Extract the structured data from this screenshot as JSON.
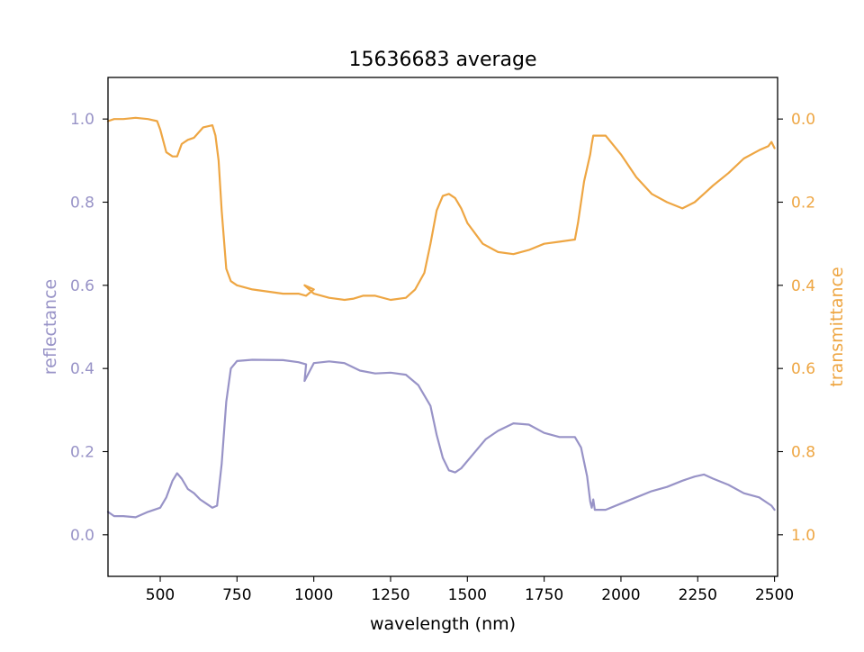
{
  "chart_data": {
    "type": "line",
    "title": "15636683 average",
    "xlabel": "wavelength (nm)",
    "ylabel_left": "reflectance",
    "ylabel_right": "transmittance",
    "xlim": [
      330,
      2510
    ],
    "ylim_left": [
      -0.1,
      1.1
    ],
    "ylim_right": [
      1.1,
      -0.1
    ],
    "x_ticks": [
      500,
      750,
      1000,
      1250,
      1500,
      1750,
      2000,
      2250,
      2500
    ],
    "x_tick_labels": [
      "500",
      "750",
      "1000",
      "1250",
      "1500",
      "1750",
      "2000",
      "2250",
      "2500"
    ],
    "y_ticks_left": [
      0.0,
      0.2,
      0.4,
      0.6,
      0.8,
      1.0
    ],
    "y_tick_labels_left": [
      "0.0",
      "0.2",
      "0.4",
      "0.6",
      "0.8",
      "1.0"
    ],
    "y_ticks_right": [
      0.0,
      0.2,
      0.4,
      0.6,
      0.8,
      1.0
    ],
    "y_tick_labels_right": [
      "0.0",
      "0.2",
      "0.4",
      "0.6",
      "0.8",
      "1.0"
    ],
    "grid": false,
    "colors": {
      "reflectance": "#9893c7",
      "transmittance": "#eea643",
      "axes": "#000000"
    },
    "series": [
      {
        "axis": "left",
        "x": [
          330,
          350,
          380,
          420,
          460,
          500,
          520,
          540,
          555,
          570,
          590,
          610,
          630,
          650,
          670,
          685,
          700,
          715,
          730,
          750,
          800,
          900,
          950,
          975,
          970,
          1000,
          1050,
          1100,
          1150,
          1200,
          1250,
          1300,
          1340,
          1380,
          1400,
          1420,
          1440,
          1460,
          1480,
          1520,
          1560,
          1600,
          1650,
          1700,
          1750,
          1800,
          1850,
          1870,
          1890,
          1900,
          1905,
          1910,
          1915,
          1920,
          1950,
          2000,
          2050,
          2100,
          2150,
          2200,
          2240,
          2270,
          2300,
          2350,
          2400,
          2450,
          2490,
          2500
        ],
        "y": [
          0.055,
          0.045,
          0.045,
          0.042,
          0.055,
          0.065,
          0.09,
          0.13,
          0.148,
          0.135,
          0.11,
          0.1,
          0.085,
          0.075,
          0.065,
          0.07,
          0.17,
          0.32,
          0.4,
          0.418,
          0.421,
          0.42,
          0.415,
          0.41,
          0.37,
          0.413,
          0.417,
          0.413,
          0.395,
          0.388,
          0.39,
          0.385,
          0.36,
          0.31,
          0.24,
          0.185,
          0.155,
          0.15,
          0.16,
          0.195,
          0.23,
          0.25,
          0.268,
          0.265,
          0.245,
          0.235,
          0.235,
          0.21,
          0.14,
          0.08,
          0.065,
          0.085,
          0.06,
          0.06,
          0.06,
          0.075,
          0.09,
          0.105,
          0.115,
          0.13,
          0.14,
          0.145,
          0.135,
          0.12,
          0.1,
          0.09,
          0.07,
          0.06
        ]
      },
      {
        "axis": "right",
        "x": [
          330,
          350,
          380,
          420,
          460,
          490,
          500,
          520,
          540,
          555,
          570,
          590,
          610,
          640,
          670,
          680,
          690,
          700,
          715,
          730,
          750,
          800,
          900,
          950,
          975,
          1000,
          970,
          1000,
          1050,
          1100,
          1130,
          1160,
          1200,
          1250,
          1300,
          1330,
          1360,
          1380,
          1400,
          1420,
          1440,
          1460,
          1480,
          1500,
          1550,
          1600,
          1650,
          1700,
          1750,
          1800,
          1850,
          1860,
          1880,
          1900,
          1905,
          1910,
          1915,
          1920,
          1950,
          2000,
          2050,
          2100,
          2150,
          2200,
          2240,
          2270,
          2300,
          2350,
          2400,
          2450,
          2480,
          2490,
          2500
        ],
        "y": [
          0.005,
          0.0,
          0.0,
          -0.003,
          0.0,
          0.005,
          0.025,
          0.08,
          0.09,
          0.09,
          0.06,
          0.05,
          0.045,
          0.02,
          0.015,
          0.04,
          0.1,
          0.22,
          0.36,
          0.39,
          0.4,
          0.41,
          0.42,
          0.42,
          0.425,
          0.41,
          0.4,
          0.42,
          0.43,
          0.435,
          0.432,
          0.425,
          0.425,
          0.435,
          0.43,
          0.41,
          0.37,
          0.3,
          0.22,
          0.185,
          0.18,
          0.19,
          0.215,
          0.25,
          0.3,
          0.32,
          0.325,
          0.315,
          0.3,
          0.295,
          0.29,
          0.25,
          0.15,
          0.085,
          0.06,
          0.04,
          0.04,
          0.04,
          0.04,
          0.085,
          0.14,
          0.18,
          0.2,
          0.215,
          0.2,
          0.18,
          0.16,
          0.13,
          0.095,
          0.075,
          0.065,
          0.055,
          0.07
        ]
      }
    ]
  }
}
